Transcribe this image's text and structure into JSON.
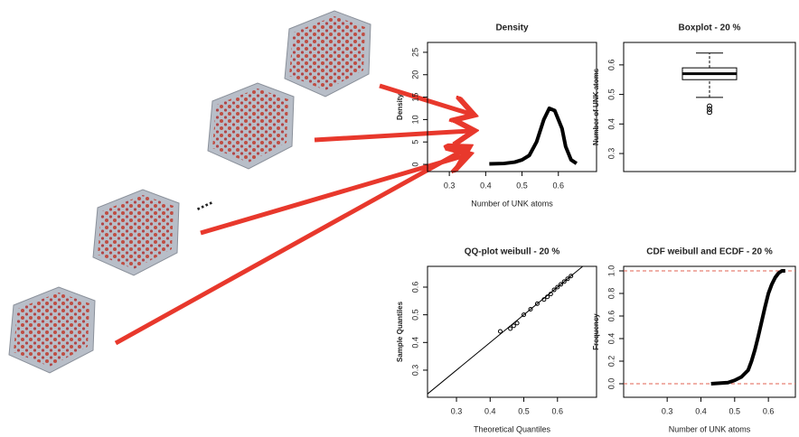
{
  "chart_data": [
    {
      "type": "line",
      "title": "Density",
      "xlabel": "Number of UNK atoms",
      "ylabel": "Density",
      "color": "#000000",
      "x": [
        0.41,
        0.45,
        0.48,
        0.5,
        0.52,
        0.54,
        0.56,
        0.575,
        0.59,
        0.61,
        0.62,
        0.635,
        0.65
      ],
      "values": [
        0.1,
        0.2,
        0.5,
        1,
        2,
        5,
        10,
        12.5,
        12,
        8,
        4,
        1,
        0.2
      ],
      "xlim": [
        0.24,
        0.705
      ],
      "ylim": [
        -1.6,
        27.2
      ],
      "xticks": [
        0.3,
        0.4,
        0.5,
        0.6
      ],
      "yticks": [
        0,
        5,
        10,
        15,
        20,
        25
      ]
    },
    {
      "type": "box",
      "title": "Boxplot - 20 %",
      "ylabel": "Number of UNK atoms",
      "color": "#000000",
      "box": {
        "whisker_low": 0.49,
        "q1": 0.55,
        "median": 0.57,
        "q3": 0.59,
        "whisker_high": 0.64,
        "outliers": [
          0.44,
          0.45,
          0.46
        ]
      },
      "ylim": [
        0.239,
        0.676
      ],
      "yticks": [
        0.3,
        0.4,
        0.5,
        0.6
      ]
    },
    {
      "type": "scatter",
      "title": "QQ-plot weibull - 20 %",
      "xlabel": "Theoretical Quantiles",
      "ylabel": "Sample Quantiles",
      "color": "#000000",
      "x": [
        0.43,
        0.46,
        0.47,
        0.48,
        0.5,
        0.52,
        0.54,
        0.56,
        0.57,
        0.58,
        0.59,
        0.6,
        0.61,
        0.62,
        0.63,
        0.64
      ],
      "values": [
        0.44,
        0.45,
        0.46,
        0.47,
        0.5,
        0.52,
        0.54,
        0.555,
        0.565,
        0.575,
        0.59,
        0.6,
        0.61,
        0.62,
        0.63,
        0.64
      ],
      "xlim": [
        0.214,
        0.716
      ],
      "ylim": [
        0.202,
        0.675
      ],
      "xticks": [
        0.3,
        0.4,
        0.5,
        0.6
      ],
      "yticks": [
        0.3,
        0.4,
        0.5,
        0.6
      ]
    },
    {
      "type": "line",
      "title": "CDF weibull and ECDF - 20 %",
      "xlabel": "Number of UNK atoms",
      "ylabel": "Frequency",
      "color": "#000000",
      "x": [
        0.43,
        0.48,
        0.5,
        0.52,
        0.54,
        0.55,
        0.56,
        0.57,
        0.58,
        0.59,
        0.6,
        0.61,
        0.62,
        0.63,
        0.64,
        0.65
      ],
      "values": [
        0.0,
        0.01,
        0.03,
        0.06,
        0.12,
        0.2,
        0.3,
        0.42,
        0.55,
        0.68,
        0.8,
        0.88,
        0.94,
        0.98,
        1.0,
        1.0
      ],
      "reference_lines": [
        0,
        1
      ],
      "reference_color": "#e06050",
      "xlim": [
        0.171,
        0.68
      ],
      "ylim": [
        -0.12,
        1.04
      ],
      "xticks": [
        0.3,
        0.4,
        0.5,
        0.6
      ],
      "yticks": [
        {
          "value": 0,
          "label": "0.0"
        },
        {
          "value": 0.2,
          "label": "0.2"
        },
        {
          "value": 0.4,
          "label": "0.4"
        },
        {
          "value": 0.6,
          "label": "0.6"
        },
        {
          "value": 0.8,
          "label": "0.8"
        },
        {
          "value": 1,
          "label": "1.0"
        }
      ]
    }
  ]
}
